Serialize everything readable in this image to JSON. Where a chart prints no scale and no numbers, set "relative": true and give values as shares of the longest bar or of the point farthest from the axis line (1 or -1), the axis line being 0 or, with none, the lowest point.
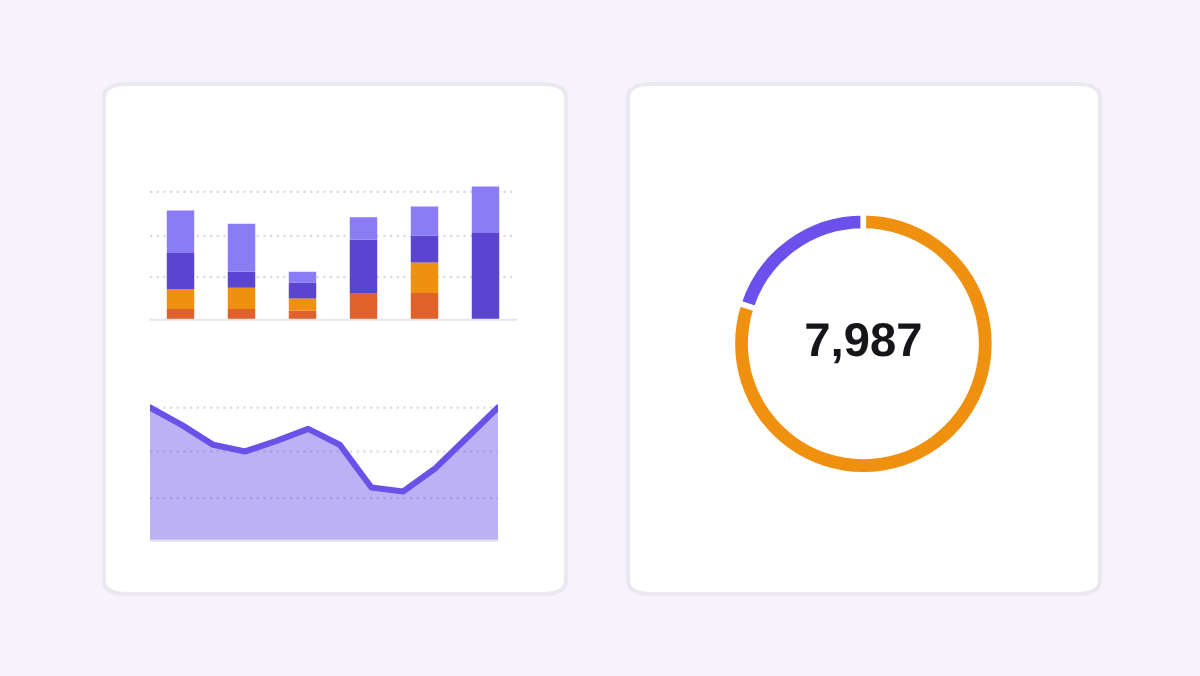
{
  "chart_data": [
    {
      "type": "bar",
      "stacked": true,
      "relative": true,
      "categories": [
        null,
        null,
        null,
        null,
        null,
        null
      ],
      "series": [
        {
          "color": "#e0622a",
          "values": [
            0.08,
            0.08,
            0.07,
            0.2,
            0.2,
            null
          ]
        },
        {
          "color": "#f0900f",
          "values": [
            0.15,
            0.16,
            0.09,
            null,
            0.23,
            null
          ]
        },
        {
          "color": "#5b45d0",
          "values": [
            0.27,
            0.12,
            0.12,
            0.4,
            0.2,
            0.65
          ]
        },
        {
          "color": "#8a7cf5",
          "values": [
            0.32,
            0.36,
            0.08,
            0.17,
            0.22,
            0.35
          ]
        }
      ],
      "ref_lines": [
        {
          "axis": "y",
          "value": 0.32,
          "color": "#d8d8e0",
          "line_style": "dotted"
        },
        {
          "axis": "y",
          "value": 0.63,
          "color": "#d8d8e0",
          "line_style": "dotted"
        },
        {
          "axis": "y",
          "value": 0.96,
          "color": "#d8d8e0",
          "line_style": "dotted"
        }
      ]
    },
    {
      "type": "area",
      "relative": true,
      "categories": [
        null,
        null,
        null,
        null,
        null,
        null,
        null,
        null,
        null,
        null,
        null,
        null
      ],
      "series": [
        {
          "color": "#6a52e8",
          "values": [
            1.0,
            0.87,
            0.72,
            0.67,
            0.75,
            0.84,
            0.72,
            0.4,
            0.37,
            0.54,
            0.77,
            1.0
          ]
        }
      ],
      "ref_lines": [
        {
          "axis": "y",
          "value": 0.32,
          "color": "#d8d8e0",
          "line_style": "dotted"
        },
        {
          "axis": "y",
          "value": 0.67,
          "color": "#d8d8e0",
          "line_style": "dotted"
        },
        {
          "axis": "y",
          "value": 1.0,
          "color": "#d8d8e0",
          "line_style": "dotted"
        }
      ]
    },
    {
      "type": "donut",
      "categories": [
        null,
        null
      ],
      "values": [
        20,
        80
      ],
      "colors": [
        "#6b50ec",
        "#f0900f"
      ],
      "annotations": [
        "7,987"
      ]
    }
  ]
}
